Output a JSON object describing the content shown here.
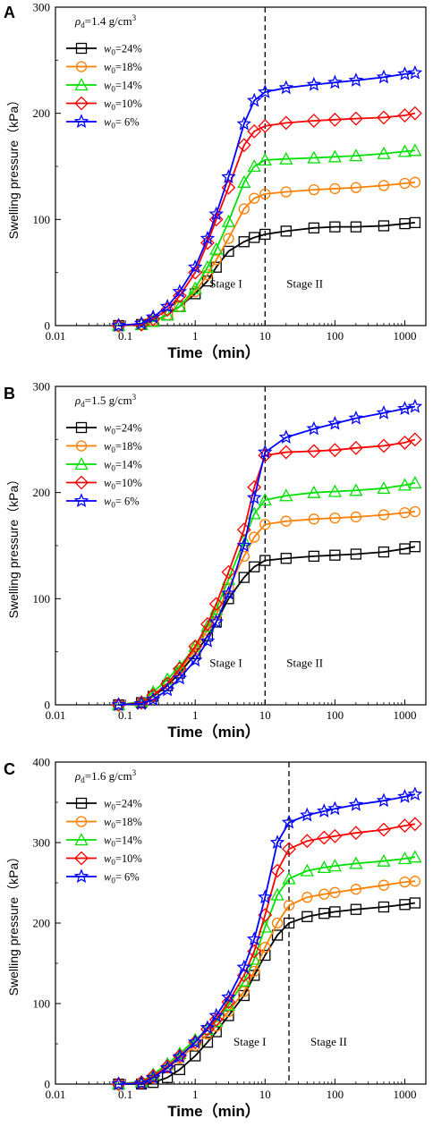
{
  "chart_data": [
    {
      "type": "line",
      "panel_label": "A",
      "density_label": {
        "symbol": "ρ",
        "sub": "d",
        "value": "=1.4 g/cm",
        "sup": "3"
      },
      "xlabel": "Time（min）",
      "ylabel": "Swelling pressure（kPa）",
      "xscale": "log",
      "xlim": [
        0.01,
        2000
      ],
      "ylim": [
        0,
        300
      ],
      "xticks": [
        0.01,
        0.1,
        1,
        10,
        100,
        1000
      ],
      "xtick_labels": [
        "0.01",
        "0.1",
        "1",
        "10",
        "100",
        "1000"
      ],
      "yticks": [
        0,
        100,
        200,
        300
      ],
      "ytick_labels": [
        "0",
        "100",
        "200",
        "300"
      ],
      "stage_boundary_x": 10,
      "stage_labels": [
        "Stage I",
        "Stage II"
      ],
      "legend_position": "top-left",
      "series": [
        {
          "name": "w0=24%",
          "label_var": "w",
          "label_sub": "0",
          "label_val": "=24%",
          "color": "#000000",
          "marker": "square",
          "x": [
            0.08,
            0.17,
            0.25,
            0.4,
            0.6,
            1,
            1.5,
            2,
            3,
            5,
            7,
            10,
            20,
            50,
            100,
            200,
            500,
            1000,
            1400
          ],
          "y": [
            0,
            1,
            4,
            10,
            18,
            30,
            42,
            55,
            70,
            79,
            83,
            86,
            89,
            92,
            93,
            93,
            94,
            96,
            97
          ]
        },
        {
          "name": "w0=18%",
          "label_var": "w",
          "label_sub": "0",
          "label_val": "=18%",
          "color": "#ff7f00",
          "marker": "circle",
          "x": [
            0.08,
            0.17,
            0.25,
            0.4,
            0.6,
            1,
            1.5,
            2,
            3,
            5,
            7,
            10,
            20,
            50,
            100,
            200,
            500,
            1000,
            1400
          ],
          "y": [
            0,
            1,
            4,
            10,
            18,
            32,
            48,
            62,
            82,
            110,
            120,
            124,
            126,
            128,
            129,
            130,
            132,
            134,
            135
          ]
        },
        {
          "name": "w0=14%",
          "label_var": "w",
          "label_sub": "0",
          "label_val": "=14%",
          "color": "#00e000",
          "marker": "triangle",
          "x": [
            0.08,
            0.17,
            0.25,
            0.4,
            0.6,
            1,
            1.5,
            2,
            3,
            5,
            7,
            10,
            20,
            50,
            100,
            200,
            500,
            1000,
            1400
          ],
          "y": [
            0,
            1,
            4,
            10,
            18,
            35,
            55,
            72,
            98,
            135,
            150,
            156,
            157,
            158,
            159,
            160,
            162,
            164,
            165
          ]
        },
        {
          "name": "w0=10%",
          "label_var": "w",
          "label_sub": "0",
          "label_val": "=10%",
          "color": "#ff0000",
          "marker": "diamond",
          "x": [
            0.08,
            0.17,
            0.25,
            0.4,
            0.6,
            1,
            1.5,
            2,
            3,
            5,
            7,
            10,
            20,
            50,
            100,
            200,
            500,
            1000,
            1400
          ],
          "y": [
            0,
            1,
            6,
            15,
            28,
            50,
            78,
            100,
            130,
            170,
            183,
            188,
            191,
            193,
            194,
            195,
            196,
            198,
            200
          ]
        },
        {
          "name": "w0= 6%",
          "label_var": "w",
          "label_sub": "0",
          "label_val": "= 6%",
          "color": "#0000ff",
          "marker": "star",
          "x": [
            0.08,
            0.17,
            0.25,
            0.4,
            0.6,
            1,
            1.5,
            2,
            3,
            5,
            7,
            10,
            20,
            50,
            100,
            200,
            500,
            1000,
            1400
          ],
          "y": [
            0,
            2,
            8,
            18,
            32,
            55,
            82,
            105,
            140,
            190,
            212,
            220,
            224,
            227,
            229,
            231,
            234,
            237,
            238
          ]
        }
      ]
    },
    {
      "type": "line",
      "panel_label": "B",
      "density_label": {
        "symbol": "ρ",
        "sub": "d",
        "value": "=1.5 g/cm",
        "sup": "3"
      },
      "xlabel": "Time（min）",
      "ylabel": "Swelling pressure（kPa）",
      "xscale": "log",
      "xlim": [
        0.01,
        2000
      ],
      "ylim": [
        0,
        300
      ],
      "xticks": [
        0.01,
        0.1,
        1,
        10,
        100,
        1000
      ],
      "xtick_labels": [
        "0.01",
        "0.1",
        "1",
        "10",
        "100",
        "1000"
      ],
      "yticks": [
        0,
        100,
        200,
        300
      ],
      "ytick_labels": [
        "0",
        "100",
        "200",
        "300"
      ],
      "stage_boundary_x": 10,
      "stage_labels": [
        "Stage I",
        "Stage II"
      ],
      "legend_position": "top-left",
      "series": [
        {
          "name": "w0=24%",
          "label_var": "w",
          "label_sub": "0",
          "label_val": "=24%",
          "color": "#000000",
          "marker": "square",
          "x": [
            0.08,
            0.17,
            0.25,
            0.4,
            0.6,
            1,
            1.5,
            2,
            3,
            5,
            7,
            10,
            20,
            50,
            100,
            200,
            500,
            1000,
            1400
          ],
          "y": [
            0,
            2,
            8,
            18,
            30,
            48,
            65,
            78,
            100,
            120,
            130,
            136,
            138,
            140,
            141,
            142,
            144,
            147,
            149
          ]
        },
        {
          "name": "w0=18%",
          "label_var": "w",
          "label_sub": "0",
          "label_val": "=18%",
          "color": "#ff7f00",
          "marker": "circle",
          "x": [
            0.08,
            0.17,
            0.25,
            0.4,
            0.6,
            1,
            1.5,
            2,
            3,
            5,
            7,
            10,
            20,
            50,
            100,
            200,
            500,
            1000,
            1400
          ],
          "y": [
            0,
            2,
            9,
            20,
            32,
            52,
            70,
            85,
            110,
            140,
            158,
            170,
            173,
            175,
            176,
            177,
            179,
            181,
            182
          ]
        },
        {
          "name": "w0=14%",
          "label_var": "w",
          "label_sub": "0",
          "label_val": "=14%",
          "color": "#00e000",
          "marker": "triangle",
          "x": [
            0.08,
            0.17,
            0.25,
            0.4,
            0.6,
            1,
            1.5,
            2,
            3,
            5,
            7,
            10,
            20,
            50,
            100,
            200,
            500,
            1000,
            1400
          ],
          "y": [
            0,
            3,
            12,
            24,
            36,
            55,
            74,
            90,
            118,
            155,
            180,
            193,
            197,
            200,
            201,
            202,
            204,
            207,
            209
          ]
        },
        {
          "name": "w0=10%",
          "label_var": "w",
          "label_sub": "0",
          "label_val": "=10%",
          "color": "#ff0000",
          "marker": "diamond",
          "x": [
            0.08,
            0.17,
            0.25,
            0.4,
            0.6,
            1,
            1.5,
            2,
            3,
            5,
            7,
            10,
            20,
            50,
            100,
            200,
            500,
            1000,
            1400
          ],
          "y": [
            0,
            2,
            9,
            20,
            34,
            55,
            76,
            95,
            125,
            165,
            205,
            235,
            238,
            239,
            240,
            242,
            244,
            247,
            250
          ]
        },
        {
          "name": "w0= 6%",
          "label_var": "w",
          "label_sub": "0",
          "label_val": "= 6%",
          "color": "#0000ff",
          "marker": "star",
          "x": [
            0.08,
            0.17,
            0.25,
            0.4,
            0.6,
            1,
            1.5,
            2,
            3,
            5,
            7,
            10,
            20,
            50,
            100,
            200,
            500,
            1000,
            1400
          ],
          "y": [
            0,
            1,
            5,
            14,
            25,
            42,
            60,
            78,
            105,
            150,
            195,
            238,
            252,
            260,
            265,
            270,
            275,
            279,
            281
          ]
        }
      ]
    },
    {
      "type": "line",
      "panel_label": "C",
      "density_label": {
        "symbol": "ρ",
        "sub": "d",
        "value": "=1.6 g/cm",
        "sup": "3"
      },
      "xlabel": "Time（min）",
      "ylabel": "Swelling pressure（kPa）",
      "xscale": "log",
      "xlim": [
        0.01,
        2000
      ],
      "ylim": [
        0,
        400
      ],
      "xticks": [
        0.01,
        0.1,
        1,
        10,
        100,
        1000
      ],
      "xtick_labels": [
        "0.01",
        "0.1",
        "1",
        "10",
        "100",
        "1000"
      ],
      "yticks": [
        0,
        100,
        200,
        300,
        400
      ],
      "ytick_labels": [
        "0",
        "100",
        "200",
        "300",
        "400"
      ],
      "stage_boundary_x": 22,
      "stage_labels": [
        "Stage I",
        "Stage II"
      ],
      "legend_position": "top-left",
      "series": [
        {
          "name": "w0=24%",
          "label_var": "w",
          "label_sub": "0",
          "label_val": "=24%",
          "color": "#000000",
          "marker": "square",
          "x": [
            0.08,
            0.17,
            0.25,
            0.4,
            0.6,
            1,
            1.5,
            2,
            3,
            5,
            7,
            10,
            15,
            22,
            40,
            70,
            100,
            200,
            500,
            1000,
            1400
          ],
          "y": [
            0,
            0,
            2,
            8,
            18,
            35,
            52,
            65,
            85,
            110,
            135,
            160,
            185,
            200,
            208,
            212,
            214,
            217,
            220,
            223,
            225
          ]
        },
        {
          "name": "w0=18%",
          "label_var": "w",
          "label_sub": "0",
          "label_val": "=18%",
          "color": "#ff7f00",
          "marker": "circle",
          "x": [
            0.08,
            0.17,
            0.25,
            0.4,
            0.6,
            1,
            1.5,
            2,
            3,
            5,
            7,
            10,
            15,
            22,
            40,
            70,
            100,
            200,
            500,
            1000,
            1400
          ],
          "y": [
            0,
            2,
            8,
            20,
            32,
            48,
            62,
            72,
            90,
            115,
            140,
            170,
            200,
            222,
            232,
            236,
            238,
            242,
            247,
            251,
            252
          ]
        },
        {
          "name": "w0=14%",
          "label_var": "w",
          "label_sub": "0",
          "label_val": "=14%",
          "color": "#00e000",
          "marker": "triangle",
          "x": [
            0.08,
            0.17,
            0.25,
            0.4,
            0.6,
            1,
            1.5,
            2,
            3,
            5,
            7,
            10,
            15,
            22,
            40,
            70,
            100,
            200,
            500,
            1000,
            1400
          ],
          "y": [
            0,
            3,
            12,
            25,
            38,
            55,
            68,
            78,
            98,
            128,
            155,
            195,
            235,
            255,
            265,
            269,
            271,
            274,
            277,
            280,
            282
          ]
        },
        {
          "name": "w0=10%",
          "label_var": "w",
          "label_sub": "0",
          "label_val": "=10%",
          "color": "#ff0000",
          "marker": "diamond",
          "x": [
            0.08,
            0.17,
            0.25,
            0.4,
            0.6,
            1,
            1.5,
            2,
            3,
            5,
            7,
            10,
            15,
            22,
            40,
            70,
            100,
            200,
            500,
            1000,
            1400
          ],
          "y": [
            0,
            2,
            10,
            22,
            35,
            52,
            68,
            80,
            102,
            135,
            165,
            210,
            265,
            292,
            302,
            306,
            308,
            312,
            316,
            321,
            323
          ]
        },
        {
          "name": "w0= 6%",
          "label_var": "w",
          "label_sub": "0",
          "label_val": "= 6%",
          "color": "#0000ff",
          "marker": "star",
          "x": [
            0.08,
            0.17,
            0.25,
            0.4,
            0.6,
            1,
            1.5,
            2,
            3,
            5,
            7,
            10,
            15,
            22,
            40,
            70,
            100,
            200,
            500,
            1000,
            1400
          ],
          "y": [
            0,
            1,
            8,
            20,
            34,
            52,
            70,
            85,
            108,
            145,
            180,
            232,
            300,
            325,
            334,
            339,
            342,
            347,
            352,
            357,
            360
          ]
        }
      ]
    }
  ]
}
